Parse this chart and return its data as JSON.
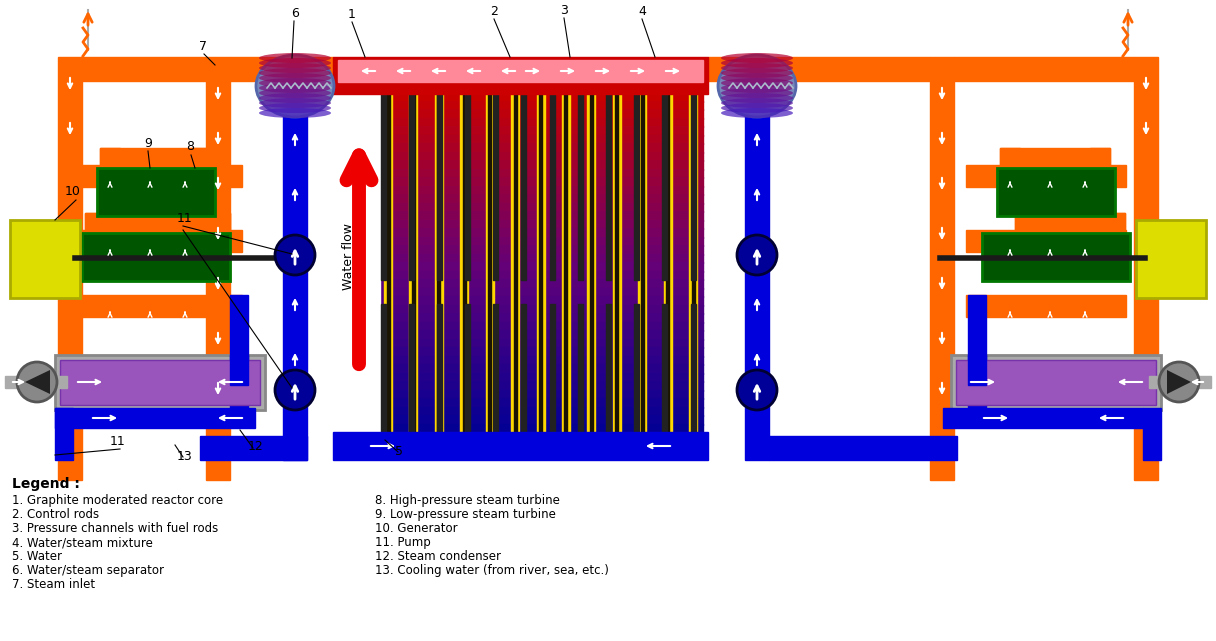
{
  "background_color": "#ffffff",
  "legend_title": "Legend :",
  "legend_items_left": [
    "1. Graphite moderated reactor core",
    "2. Control rods",
    "3. Pressure channels with fuel rods",
    "4. Water/steam mixture",
    "5. Water",
    "6. Water/steam separator",
    "7. Steam inlet"
  ],
  "legend_items_right": [
    "8. High-pressure steam turbine",
    "9. Low-pressure steam turbine",
    "10. Generator",
    "11. Pump",
    "12. Steam condenser",
    "13. Cooling water (from river, sea, etc.)"
  ],
  "colors": {
    "orange": "#FF6600",
    "blue": "#0000DD",
    "dark_blue": "#000099",
    "red": "#CC0000",
    "bright_red": "#FF2200",
    "yellow": "#FFD700",
    "green": "#007700",
    "dark_green": "#005500",
    "gray": "#999999",
    "dark_gray": "#555555",
    "purple": "#7722AA",
    "white": "#FFFFFF",
    "black": "#000000",
    "sep_top": "#BB8888",
    "sep_bot": "#6688BB"
  }
}
